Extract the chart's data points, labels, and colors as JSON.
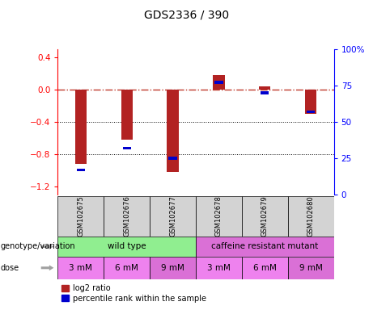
{
  "title": "GDS2336 / 390",
  "samples": [
    "GSM102675",
    "GSM102676",
    "GSM102677",
    "GSM102678",
    "GSM102679",
    "GSM102680"
  ],
  "log2_ratio": [
    -0.92,
    -0.62,
    -1.02,
    0.18,
    0.04,
    -0.3
  ],
  "percentile_rank": [
    17,
    32,
    25,
    77,
    70,
    57
  ],
  "ylim_left": [
    -1.3,
    0.5
  ],
  "ylim_right": [
    0,
    100
  ],
  "y_ticks_left": [
    0.4,
    0.0,
    -0.4,
    -0.8,
    -1.2
  ],
  "y_ticks_right": [
    100,
    75,
    50,
    25,
    0
  ],
  "y_tick_right_labels": [
    "100%",
    "75",
    "50",
    "25",
    "0"
  ],
  "genotype_groups": [
    {
      "label": "wild type",
      "cols": [
        0,
        1,
        2
      ],
      "color": "#90EE90"
    },
    {
      "label": "caffeine resistant mutant",
      "cols": [
        3,
        4,
        5
      ],
      "color": "#DA70D6"
    }
  ],
  "doses": [
    "3 mM",
    "6 mM",
    "9 mM",
    "3 mM",
    "6 mM",
    "9 mM"
  ],
  "dose_colors": [
    "#EE82EE",
    "#EE82EE",
    "#DA70D6",
    "#EE82EE",
    "#EE82EE",
    "#DA70D6"
  ],
  "bar_color_red": "#B22222",
  "bar_color_blue": "#0000CD",
  "ref_line_color": "#C0392B",
  "sample_box_color": "#D3D3D3",
  "bar_width": 0.25,
  "blue_bar_width": 0.18,
  "blue_bar_height": 0.035
}
